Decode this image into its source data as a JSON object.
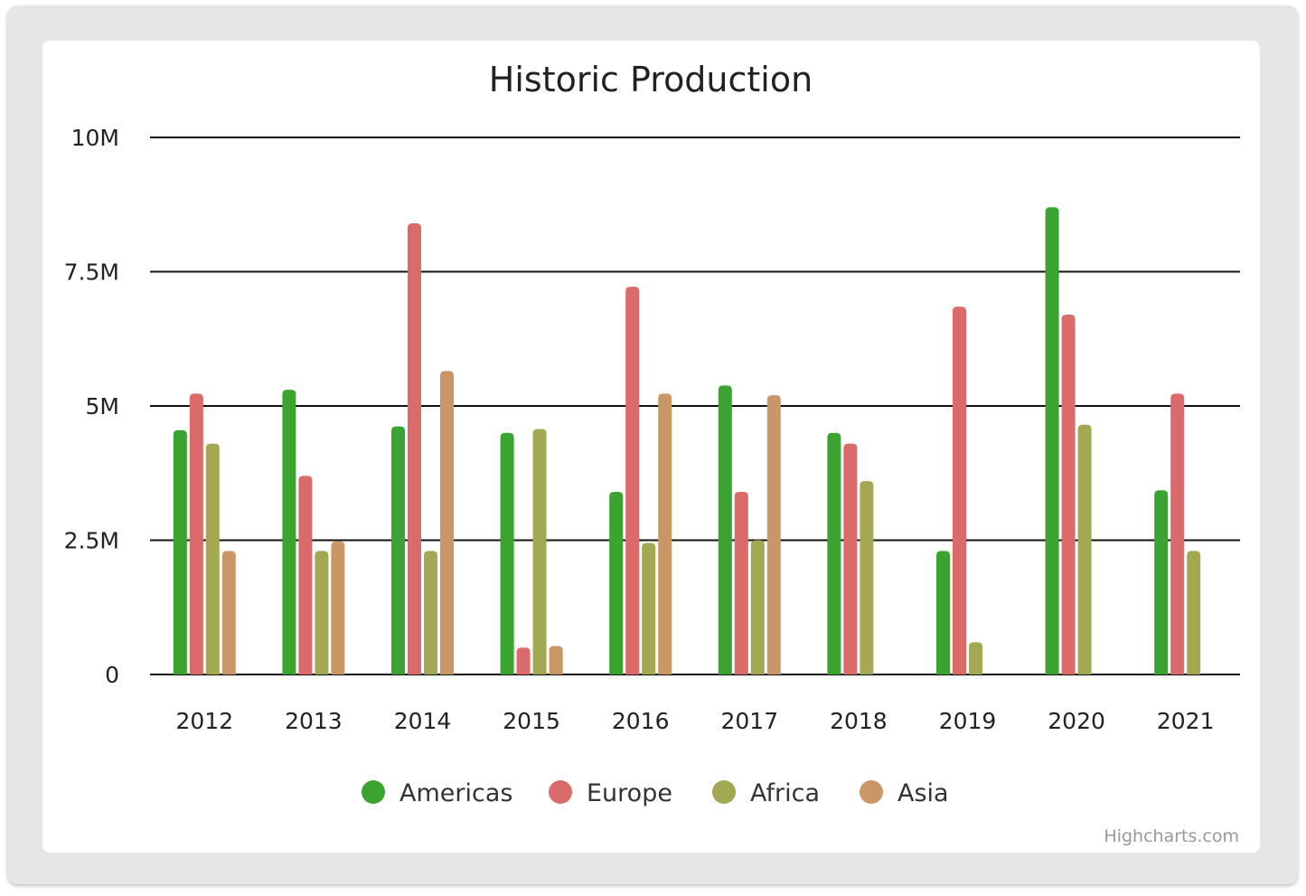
{
  "chart_data": {
    "type": "bar",
    "title": "Historic Production",
    "categories": [
      "2012",
      "2013",
      "2014",
      "2015",
      "2016",
      "2017",
      "2018",
      "2019",
      "2020",
      "2021"
    ],
    "ylim": [
      0,
      10000000
    ],
    "yticks": [
      {
        "value": 0,
        "label": "0"
      },
      {
        "value": 2500000,
        "label": "2.5M"
      },
      {
        "value": 5000000,
        "label": "5M"
      },
      {
        "value": 7500000,
        "label": "7.5M"
      },
      {
        "value": 10000000,
        "label": "10M"
      }
    ],
    "grid": true,
    "legend_position": "bottom-center",
    "series": [
      {
        "name": "Americas",
        "color": "#3ba32f",
        "values": [
          4550000,
          5300000,
          4620000,
          4500000,
          3400000,
          5380000,
          4500000,
          2300000,
          8700000,
          3430000
        ]
      },
      {
        "name": "Europe",
        "color": "#db6b6b",
        "values": [
          5230000,
          3700000,
          8400000,
          500000,
          7220000,
          3400000,
          4300000,
          6850000,
          6700000,
          5230000
        ]
      },
      {
        "name": "Africa",
        "color": "#a3a852",
        "values": [
          4300000,
          2300000,
          2300000,
          4570000,
          2450000,
          2500000,
          3600000,
          600000,
          4650000,
          2300000
        ]
      },
      {
        "name": "Asia",
        "color": "#c99765",
        "values": [
          2300000,
          2480000,
          5650000,
          530000,
          5230000,
          5200000,
          null,
          null,
          null,
          null
        ]
      }
    ]
  },
  "credits": "Highcharts.com"
}
